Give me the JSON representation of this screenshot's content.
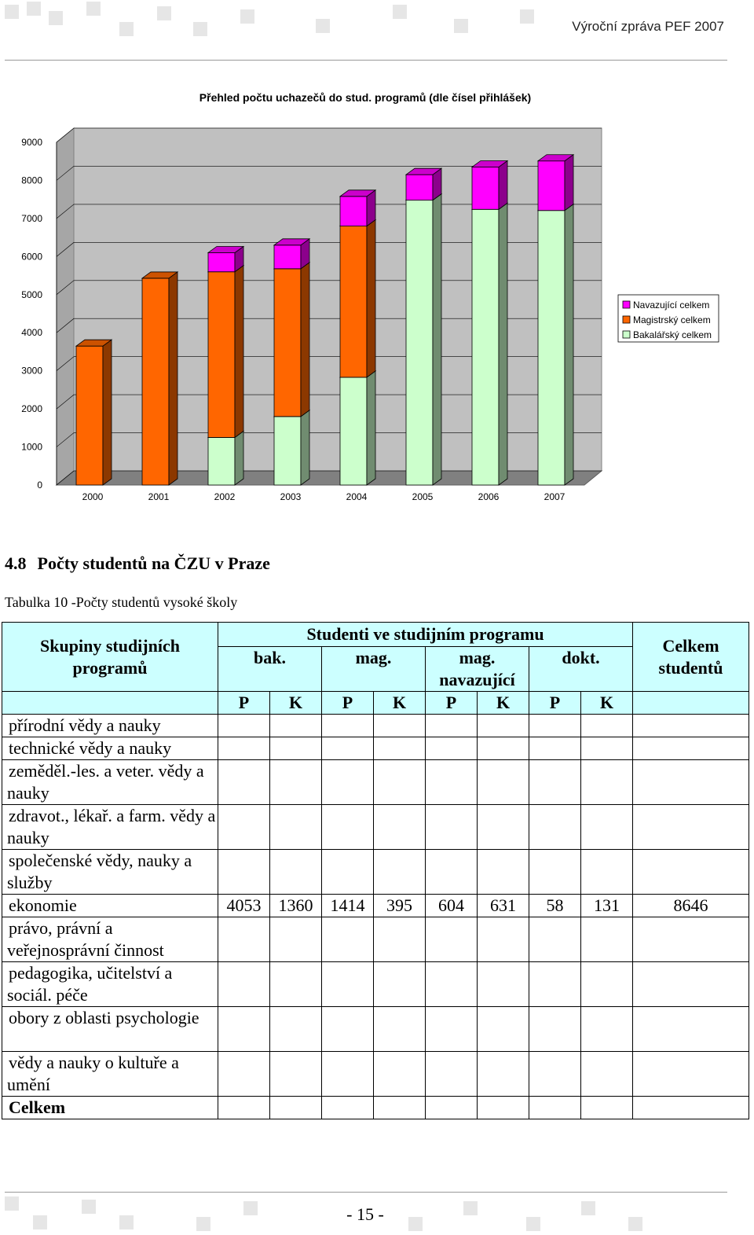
{
  "header": {
    "title": "Výroční zpráva PEF 2007"
  },
  "chart_data": {
    "type": "bar",
    "stacked": true,
    "three_d": true,
    "title": "Přehled počtu uchazečů do stud. programů (dle čísel přihlášek)",
    "categories": [
      "2000",
      "2001",
      "2002",
      "2003",
      "2004",
      "2005",
      "2006",
      "2007"
    ],
    "series": [
      {
        "name": "Bakalářský celkem",
        "color": "#ccffcc",
        "values": [
          0,
          0,
          1250,
          1800,
          2830,
          7480,
          7240,
          7210
        ]
      },
      {
        "name": "Magistrský celkem",
        "color": "#ff6600",
        "values": [
          3650,
          5430,
          4350,
          3880,
          3970,
          0,
          0,
          0
        ]
      },
      {
        "name": "Navazující celkem",
        "color": "#ff00ff",
        "values": [
          0,
          0,
          500,
          620,
          780,
          670,
          1110,
          1300
        ]
      }
    ],
    "y_ticks": [
      "0",
      "1000",
      "2000",
      "3000",
      "4000",
      "5000",
      "6000",
      "7000",
      "8000",
      "9000"
    ],
    "ylim": [
      0,
      9000
    ],
    "grid": true,
    "legend_position": "right",
    "back_wall_color": "#c0c0c0",
    "floor_color": "#808080"
  },
  "section": {
    "number": "4.8",
    "title": "Počty studentů na ČZU v Praze"
  },
  "table": {
    "caption": "Tabulka 10 -Počty studentů vysoké školy",
    "header": {
      "group_col": "Skupiny studijních programů",
      "students_in_program": "Studenti ve studijním programu",
      "total_col": "Celkem studentů",
      "programs": [
        "bak.",
        "mag.",
        "mag. navazující",
        "dokt."
      ],
      "forms": [
        "P",
        "K",
        "P",
        "K",
        "P",
        "K",
        "P",
        "K"
      ]
    },
    "rows": [
      {
        "group": "přírodní vědy a nauky",
        "values": [
          "",
          "",
          "",
          "",
          "",
          "",
          "",
          "",
          ""
        ]
      },
      {
        "group": "technické vědy a nauky",
        "values": [
          "",
          "",
          "",
          "",
          "",
          "",
          "",
          "",
          ""
        ]
      },
      {
        "group": "zeměděl.-les. a veter. vědy a nauky",
        "values": [
          "",
          "",
          "",
          "",
          "",
          "",
          "",
          "",
          ""
        ]
      },
      {
        "group": "zdravot., lékař. a farm. vědy a nauky",
        "values": [
          "",
          "",
          "",
          "",
          "",
          "",
          "",
          "",
          ""
        ]
      },
      {
        "group": "společenské vědy, nauky a služby",
        "values": [
          "",
          "",
          "",
          "",
          "",
          "",
          "",
          "",
          ""
        ]
      },
      {
        "group": "ekonomie",
        "values": [
          "4053",
          "1360",
          "1414",
          "395",
          "604",
          "631",
          "58",
          "131",
          "8646"
        ]
      },
      {
        "group": "právo, právní a veřejnosprávní činnost",
        "values": [
          "",
          "",
          "",
          "",
          "",
          "",
          "",
          "",
          ""
        ]
      },
      {
        "group": "pedagogika, učitelství a sociál. péče",
        "values": [
          "",
          "",
          "",
          "",
          "",
          "",
          "",
          "",
          ""
        ]
      },
      {
        "group": "obory z oblasti psychologie",
        "values": [
          "",
          "",
          "",
          "",
          "",
          "",
          "",
          "",
          ""
        ]
      },
      {
        "group": "vědy a nauky o kultuře a umění",
        "values": [
          "",
          "",
          "",
          "",
          "",
          "",
          "",
          "",
          ""
        ]
      },
      {
        "group": "Celkem",
        "values": [
          "",
          "",
          "",
          "",
          "",
          "",
          "",
          "",
          ""
        ]
      }
    ]
  },
  "footer": {
    "page_number": "- 15 -"
  }
}
